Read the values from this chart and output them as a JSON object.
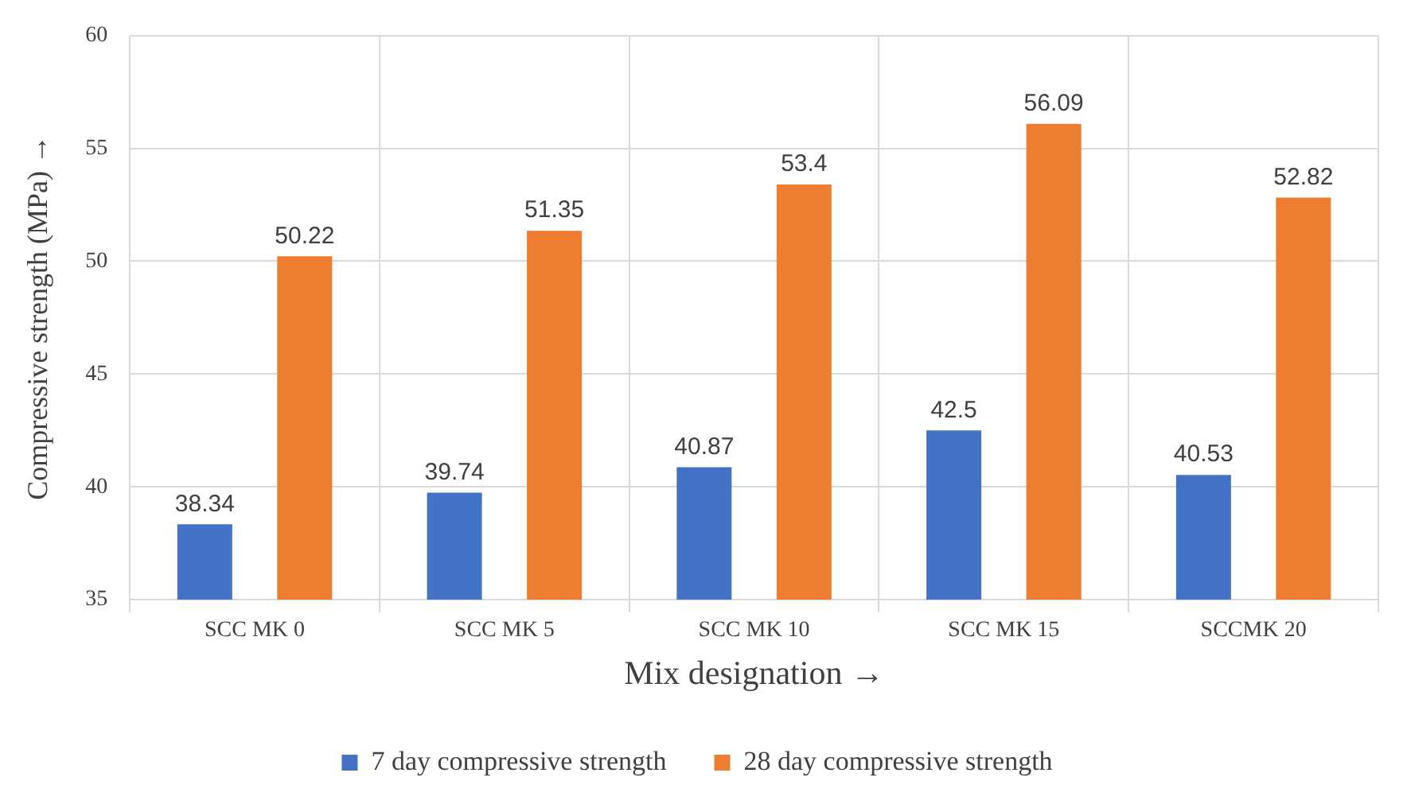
{
  "chart_data": {
    "type": "bar",
    "xlabel": "Mix designation →",
    "ylabel": "Compressive strength (MPa) →",
    "categories": [
      "SCC MK 0",
      "SCC MK 5",
      "SCC MK 10",
      "SCC MK 15",
      "SCCMK 20"
    ],
    "series": [
      {
        "name": "7 day compressive strength",
        "color": "#4472c4",
        "values": [
          38.34,
          39.74,
          40.87,
          42.5,
          40.53
        ]
      },
      {
        "name": "28 day compressive strength",
        "color": "#ed7d31",
        "values": [
          50.22,
          51.35,
          53.4,
          56.09,
          52.82
        ]
      }
    ],
    "ylim": [
      35,
      60
    ],
    "yticks": [
      35,
      40,
      45,
      50,
      55,
      60
    ],
    "grid": true,
    "legend": "bottom",
    "data_labels": true
  }
}
